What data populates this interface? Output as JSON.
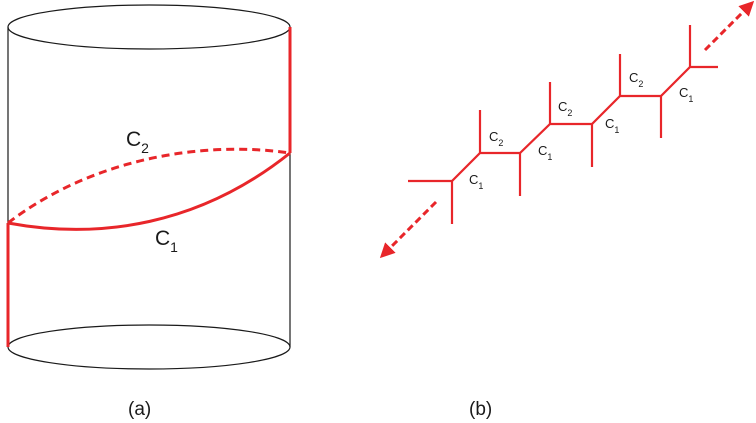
{
  "panel_a": {
    "caption": "(a)",
    "curve_upper": {
      "letter": "C",
      "index": "2",
      "style": "dashed"
    },
    "curve_lower": {
      "letter": "C",
      "index": "1",
      "style": "solid"
    }
  },
  "panel_b": {
    "caption": "(b)",
    "labels": [
      {
        "letter": "C",
        "index": "1"
      },
      {
        "letter": "C",
        "index": "2"
      },
      {
        "letter": "C",
        "index": "1"
      },
      {
        "letter": "C",
        "index": "2"
      },
      {
        "letter": "C",
        "index": "1"
      },
      {
        "letter": "C",
        "index": "2"
      },
      {
        "letter": "C",
        "index": "1"
      }
    ]
  },
  "colors": {
    "accent": "#e8262a",
    "line": "#1a1a1a",
    "background": "#ffffff"
  }
}
